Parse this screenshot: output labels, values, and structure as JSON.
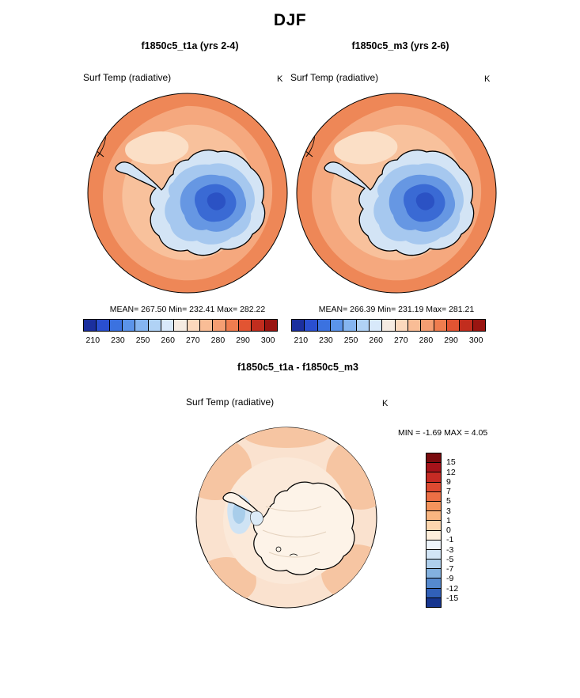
{
  "title": "DJF",
  "panels": [
    {
      "title": "f1850c5_t1a (yrs 2-4)",
      "field": "Surf Temp (radiative)",
      "units": "K",
      "stats": "MEAN= 267.50 Min= 232.41 Max= 282.22"
    },
    {
      "title": "f1850c5_m3 (yrs 2-6)",
      "field": "Surf Temp (radiative)",
      "units": "K",
      "stats": "MEAN= 266.39 Min= 231.19 Max= 281.21"
    }
  ],
  "diff": {
    "title": "f1850c5_t1a - f1850c5_m3",
    "field": "Surf Temp (radiative)",
    "units": "K",
    "stats": "MIN =  -1.69 MAX =   4.05"
  },
  "colorbar_top": {
    "ticks": [
      "210",
      "230",
      "250",
      "260",
      "270",
      "280",
      "290",
      "300"
    ],
    "colors": [
      "#1b2f9e",
      "#2a4fd0",
      "#3b72e0",
      "#5b94ea",
      "#85b5f0",
      "#b0d2f5",
      "#d8e9fa",
      "#f6ece2",
      "#fbd9bd",
      "#f9bd96",
      "#f59e72",
      "#ef7d4f",
      "#e25432",
      "#c22d1e",
      "#9a1511"
    ]
  },
  "colorbar_diff": {
    "ticks": [
      "15",
      "12",
      "9",
      "7",
      "5",
      "3",
      "1",
      "0",
      "-1",
      "-3",
      "-5",
      "-7",
      "-9",
      "-12",
      "-15"
    ],
    "colors": [
      "#7a0b0e",
      "#a6131a",
      "#c62b24",
      "#de4a31",
      "#ec6f45",
      "#f4945c",
      "#f9b681",
      "#fcd6ae",
      "#feeedb",
      "#eef5fc",
      "#d2e5f6",
      "#aecfec",
      "#83b1df",
      "#5589ce",
      "#3160b8",
      "#17368f"
    ]
  },
  "map_colors": {
    "ocean_warm": "#ee8757",
    "ocean_mid": "#f5a87e",
    "ocean_cool": "#f8c19c",
    "ice_pale": "#d3e4f5",
    "ice_cold": "#3a6ad4",
    "diff_base": "#fae2cf",
    "diff_blue": "#cfe3f4"
  },
  "chart_data": {
    "type": "heatmap",
    "title": "DJF",
    "projection": "south polar stereographic (Antarctica)",
    "variable": "Surf Temp (radiative)",
    "units": "K",
    "panels": [
      {
        "name": "f1850c5_t1a",
        "years": "yrs 2-4",
        "mean": 267.5,
        "min": 232.41,
        "max": 282.22
      },
      {
        "name": "f1850c5_m3",
        "years": "yrs 2-6",
        "mean": 266.39,
        "min": 231.19,
        "max": 281.21
      },
      {
        "name": "f1850c5_t1a - f1850c5_m3",
        "min": -1.69,
        "max": 4.05
      }
    ],
    "colorbar_levels_K": [
      210,
      230,
      250,
      260,
      270,
      280,
      290,
      300
    ],
    "diff_levels_K": [
      15,
      12,
      9,
      7,
      5,
      3,
      1,
      0,
      -1,
      -3,
      -5,
      -7,
      -9,
      -12,
      -15
    ],
    "legend_position": "below panels (horizontal), right of diff panel (vertical)"
  }
}
